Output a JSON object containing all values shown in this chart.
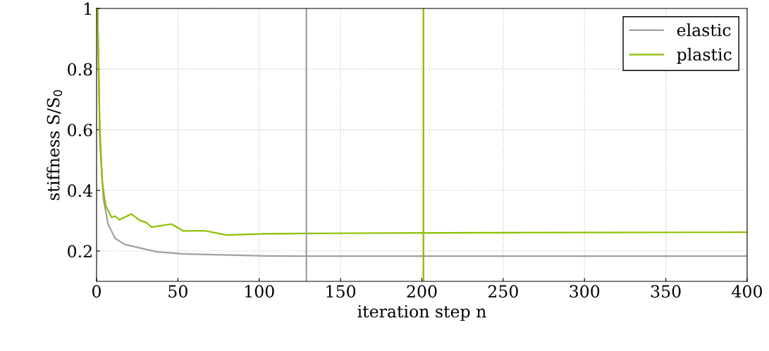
{
  "chart_data": {
    "type": "line",
    "xlabel": "iteration step n",
    "ylabel": "stiffness S/S$_{0}$",
    "xlim": [
      0,
      400
    ],
    "ylim": [
      0.1,
      1
    ],
    "xticks": [
      0,
      50,
      100,
      150,
      200,
      250,
      300,
      350,
      400
    ],
    "yticks": [
      0.2,
      0.4,
      0.6,
      0.8,
      1
    ],
    "grid": true,
    "legend": "top right",
    "line_style": "solid",
    "marker": "none",
    "series": [
      {
        "name": "elastic",
        "color": "#a0a0a0",
        "x": [
          0.6,
          2.0,
          4.2,
          7.1,
          11.4,
          17.2,
          25.9,
          37.4,
          51.9,
          103.9,
          129,
          400
        ],
        "values": [
          1,
          0.565,
          0.373,
          0.288,
          0.242,
          0.222,
          0.211,
          0.197,
          0.191,
          0.184,
          0.183,
          0.183
        ]
      },
      {
        "name": "plastic",
        "color": "#8cbf00",
        "x": [
          0.6,
          2.0,
          3.5,
          5.6,
          9.2,
          11.4,
          14.0,
          21.5,
          26.6,
          30.5,
          33.8,
          46.1,
          53.3,
          66.3,
          80.0,
          103.9,
          129,
          201,
          400
        ],
        "values": [
          1,
          0.604,
          0.427,
          0.35,
          0.311,
          0.315,
          0.303,
          0.322,
          0.301,
          0.294,
          0.279,
          0.289,
          0.266,
          0.267,
          0.253,
          0.257,
          0.258,
          0.26,
          0.262
        ]
      }
    ],
    "ref_lines": [
      {
        "axis": "x",
        "value": 129,
        "color": "#a0a0a0",
        "line_style": "solid"
      },
      {
        "axis": "x",
        "value": 201,
        "color": "#8cbf00",
        "line_style": "solid"
      }
    ]
  }
}
